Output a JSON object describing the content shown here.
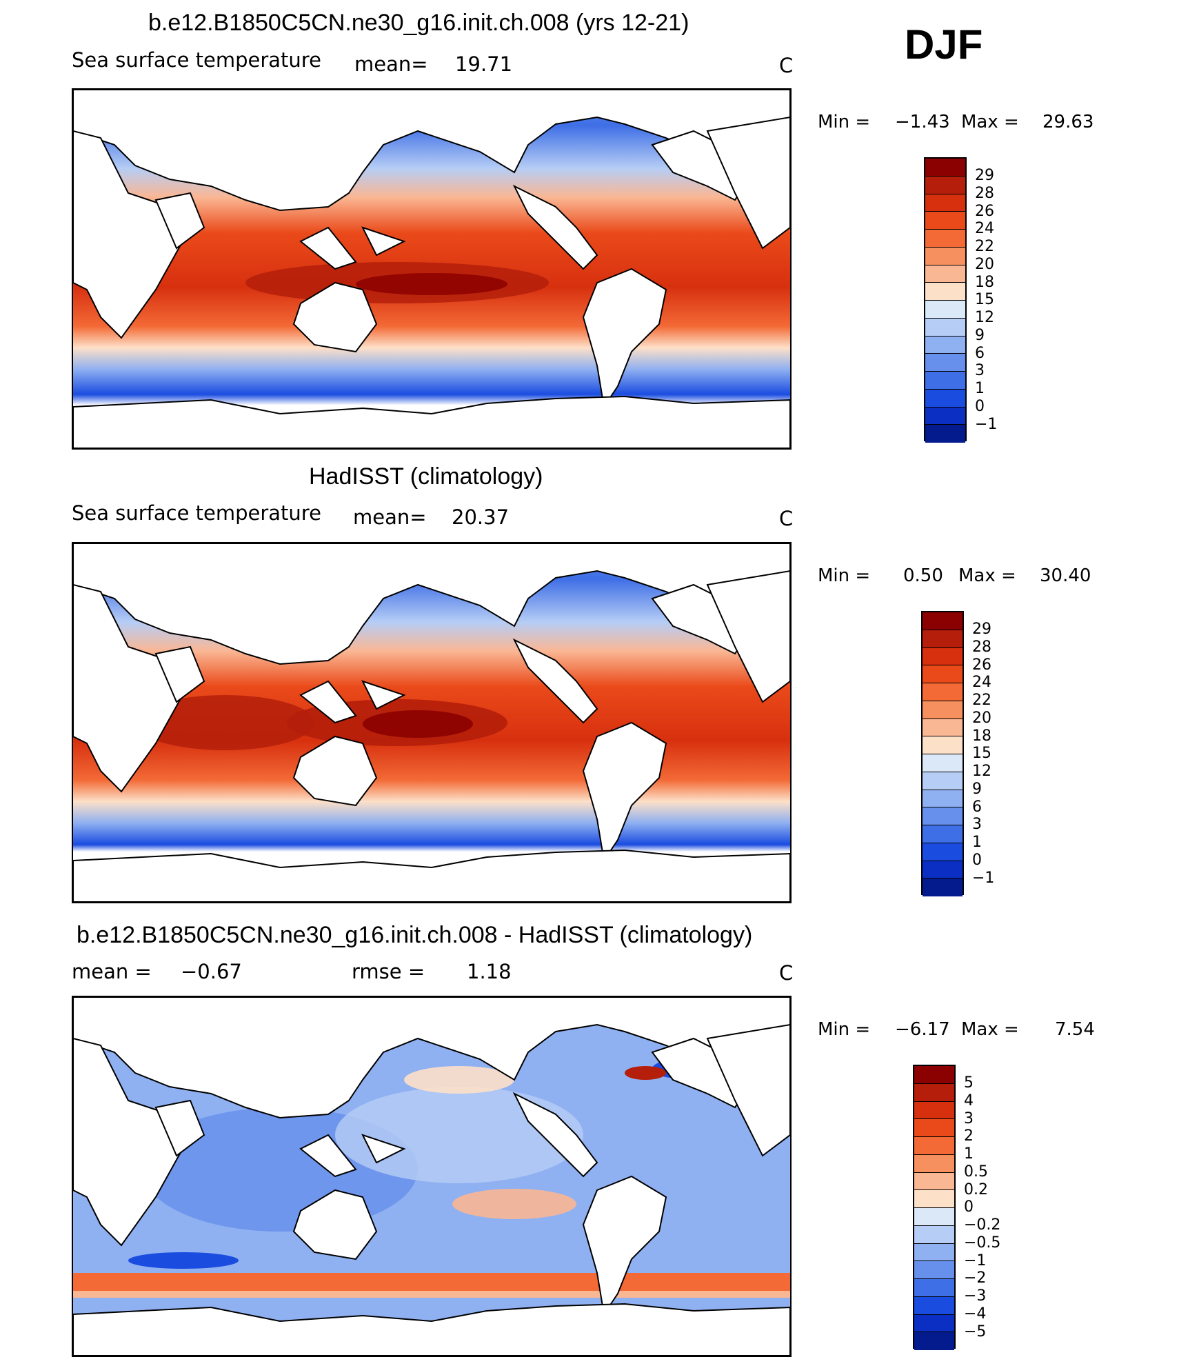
{
  "season": "DJF",
  "panels": [
    {
      "title": "b.e12.B1850C5CN.ne30_g16.init.ch.008 (yrs 12-21)",
      "left_label": "Sea surface temperature",
      "stat_label": "mean=",
      "stat_value": "19.71",
      "units": "C",
      "min_label": "Min =",
      "min_value": "−1.43",
      "max_label": "Max =",
      "max_value": "29.63"
    },
    {
      "title": "HadISST (climatology)",
      "left_label": "Sea surface temperature",
      "stat_label": "mean=",
      "stat_value": "20.37",
      "units": "C",
      "min_label": "Min =",
      "min_value": "0.50",
      "max_label": "Max =",
      "max_value": "30.40"
    },
    {
      "title": "b.e12.B1850C5CN.ne30_g16.init.ch.008 - HadISST (climatology)",
      "left_label": "mean =",
      "left_value": "−0.67",
      "stat_label": "rmse =",
      "stat_value": "1.18",
      "units": "C",
      "min_label": "Min =",
      "min_value": "−6.17",
      "max_label": "Max =",
      "max_value": "7.54"
    }
  ],
  "colorbars": {
    "sst": {
      "labels": [
        "29",
        "28",
        "26",
        "24",
        "22",
        "20",
        "18",
        "15",
        "12",
        "9",
        "6",
        "3",
        "1",
        "0",
        "−1"
      ],
      "colors": [
        "#8b0000",
        "#b41e0a",
        "#d7300f",
        "#ea4a1a",
        "#f36a36",
        "#f7905f",
        "#fab794",
        "#fde0c8",
        "#dbe8f8",
        "#b6cdf5",
        "#8fb0f1",
        "#6690ec",
        "#3f6fe6",
        "#1a4ce0",
        "#0a2fc2",
        "#031b8c"
      ]
    },
    "diff": {
      "labels": [
        "5",
        "4",
        "3",
        "2",
        "1",
        "0.5",
        "0.2",
        "0",
        "−0.2",
        "−0.5",
        "−1",
        "−2",
        "−3",
        "−4",
        "−5"
      ],
      "colors": [
        "#8b0000",
        "#b41e0a",
        "#d7300f",
        "#ea4a1a",
        "#f36a36",
        "#f7905f",
        "#fab794",
        "#fde0c8",
        "#dbe8f8",
        "#b6cdf5",
        "#8fb0f1",
        "#6690ec",
        "#3f6fe6",
        "#1a4ce0",
        "#0a2fc2",
        "#031b8c"
      ]
    }
  }
}
